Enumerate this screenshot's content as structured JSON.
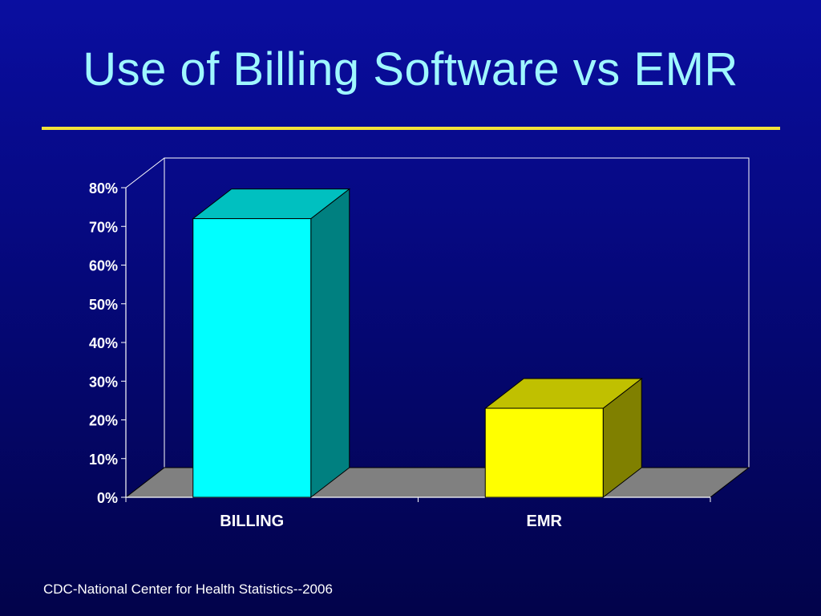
{
  "title": "Use of Billing Software vs EMR",
  "source": "CDC-National Center for Health Statistics--2006",
  "colors": {
    "title": "#9ff7ff",
    "rule": "#f3e23a",
    "floor": "#808080",
    "axis": "#ffffff"
  },
  "chart_data": {
    "type": "bar",
    "style": "3d",
    "categories": [
      "BILLING",
      "EMR"
    ],
    "values": [
      72,
      23
    ],
    "y_tick_labels": [
      "0%",
      "10%",
      "20%",
      "30%",
      "40%",
      "50%",
      "60%",
      "70%",
      "80%"
    ],
    "ylim": [
      0,
      80
    ],
    "grid": false,
    "legend": "none",
    "bar_colors": [
      {
        "front": "#00ffff",
        "side": "#008080",
        "top": "#00c0c0"
      },
      {
        "front": "#ffff00",
        "side": "#808000",
        "top": "#c0c000"
      }
    ]
  }
}
